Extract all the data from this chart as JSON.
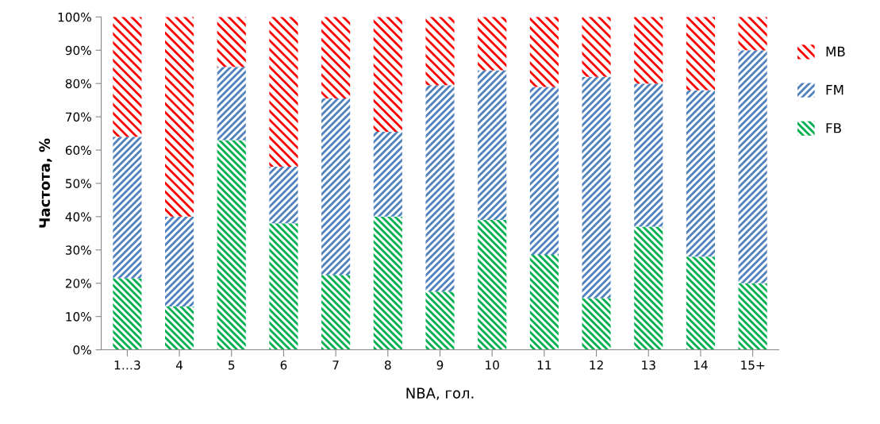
{
  "chart_data": {
    "type": "bar",
    "stacked": true,
    "xlabel": "NBA, гол.",
    "ylabel": "Частота, %",
    "categories": [
      "1…3",
      "4",
      "5",
      "6",
      "7",
      "8",
      "9",
      "10",
      "11",
      "12",
      "13",
      "14",
      "15+"
    ],
    "series": [
      {
        "name": "FB",
        "color": "#00b050",
        "values": [
          21.5,
          13,
          63,
          38,
          22.5,
          40,
          17.5,
          39,
          28.5,
          15.5,
          37,
          28,
          20
        ]
      },
      {
        "name": "FM",
        "color": "#4f81bd",
        "values": [
          42.5,
          27,
          22,
          17,
          53,
          25.5,
          62,
          45,
          50.5,
          66.5,
          43,
          50,
          70
        ]
      },
      {
        "name": "MB",
        "color": "#ff0000",
        "values": [
          36,
          60,
          15,
          45,
          24.5,
          34.5,
          20.5,
          16,
          21,
          18,
          20,
          22,
          10
        ]
      }
    ],
    "ylim": [
      0,
      100
    ],
    "yticks": [
      {
        "value": 0,
        "label": "0%"
      },
      {
        "value": 10,
        "label": "10%"
      },
      {
        "value": 20,
        "label": "20%"
      },
      {
        "value": 30,
        "label": "30%"
      },
      {
        "value": 40,
        "label": "40%"
      },
      {
        "value": 50,
        "label": "50%"
      },
      {
        "value": 60,
        "label": "60%"
      },
      {
        "value": 70,
        "label": "70%"
      },
      {
        "value": 80,
        "label": "80%"
      },
      {
        "value": 90,
        "label": "90%"
      },
      {
        "value": 100,
        "label": "100%"
      }
    ],
    "grid": false,
    "legend": "right"
  }
}
